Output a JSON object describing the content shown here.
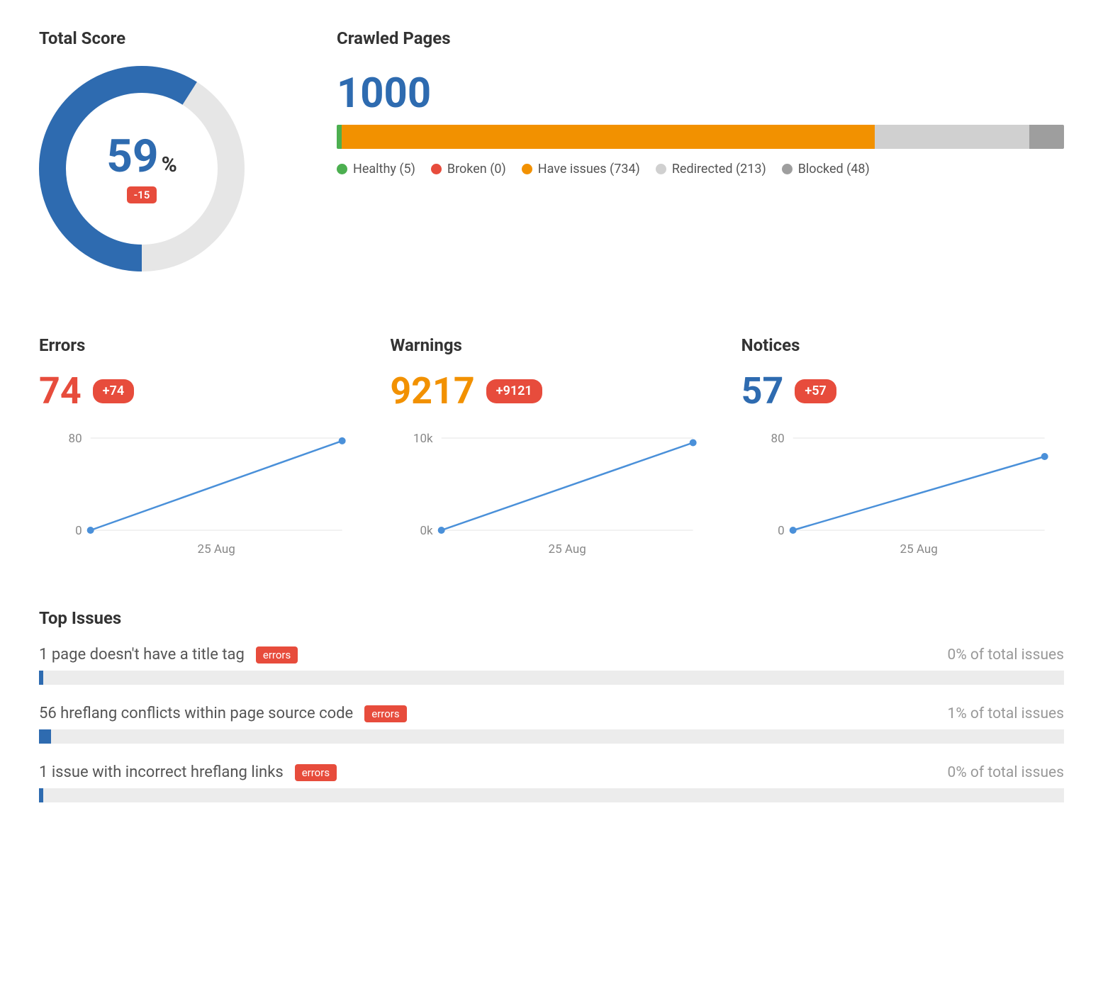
{
  "colors": {
    "blue": "#2e6bb0",
    "track": "#e6e6e6",
    "red": "#e74c3c",
    "orange": "#f29100",
    "green": "#4caf50",
    "gray": "#9e9e9e",
    "grayLight": "#d0d0d0",
    "text": "#333333",
    "muted": "#888888",
    "chartLine": "#4a90d9",
    "progressBg": "#ececec"
  },
  "score": {
    "title": "Total Score",
    "value": "59",
    "unit": "%",
    "delta": "-15",
    "percent": 59,
    "ring_thickness": 38
  },
  "crawled": {
    "title": "Crawled Pages",
    "total": "1000",
    "segments": [
      {
        "label": "Healthy",
        "count": 5,
        "color": "#4caf50"
      },
      {
        "label": "Broken",
        "count": 0,
        "color": "#e74c3c"
      },
      {
        "label": "Have issues",
        "count": 734,
        "color": "#f29100"
      },
      {
        "label": "Redirected",
        "count": 213,
        "color": "#d0d0d0"
      },
      {
        "label": "Blocked",
        "count": 48,
        "color": "#9e9e9e"
      }
    ]
  },
  "stats": [
    {
      "title": "Errors",
      "value": "74",
      "value_color": "#e74c3c",
      "delta": "+74",
      "y_labels": [
        "80",
        "0"
      ],
      "x_label": "25 Aug",
      "points": [
        [
          0,
          0
        ],
        [
          1,
          0.97
        ]
      ]
    },
    {
      "title": "Warnings",
      "value": "9217",
      "value_color": "#f29100",
      "delta": "+9121",
      "y_labels": [
        "10k",
        "0k"
      ],
      "x_label": "25 Aug",
      "points": [
        [
          0,
          0
        ],
        [
          1,
          0.95
        ]
      ]
    },
    {
      "title": "Notices",
      "value": "57",
      "value_color": "#2e6bb0",
      "delta": "+57",
      "y_labels": [
        "80",
        "0"
      ],
      "x_label": "25 Aug",
      "points": [
        [
          0,
          0
        ],
        [
          1,
          0.8
        ]
      ]
    }
  ],
  "issues": {
    "title": "Top Issues",
    "list": [
      {
        "text": "1 page doesn't have a title tag",
        "tag": "errors",
        "pct_label": "0% of total issues",
        "fill_pct": 0.4
      },
      {
        "text": "56 hreflang conflicts within page source code",
        "tag": "errors",
        "pct_label": "1% of total issues",
        "fill_pct": 1.2
      },
      {
        "text": "1 issue with incorrect hreflang links",
        "tag": "errors",
        "pct_label": "0% of total issues",
        "fill_pct": 0.4
      }
    ]
  }
}
